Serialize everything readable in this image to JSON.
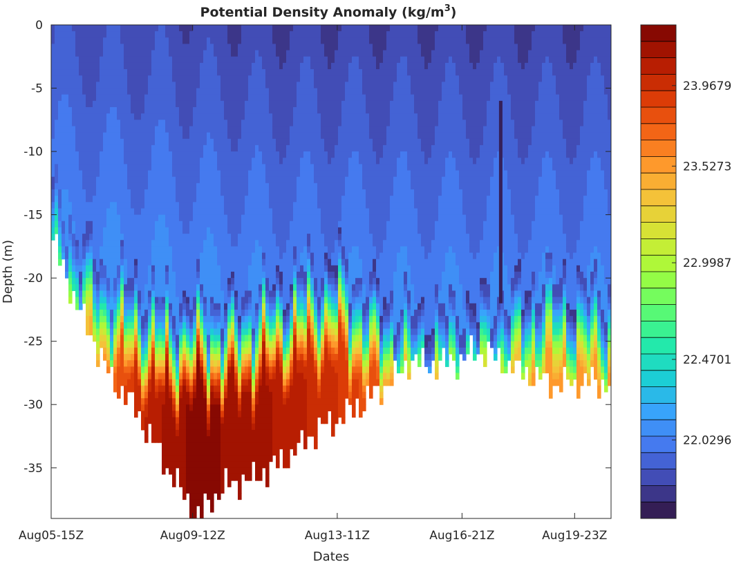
{
  "chart_data": {
    "type": "heatmap",
    "title": "Potential Density Anomaly (kg/m",
    "title_superscript": "3",
    "title_suffix": ")",
    "xlabel": "Dates",
    "ylabel": "Depth  (m)",
    "xlim": [
      0,
      15.33
    ],
    "ylim": [
      -39,
      0
    ],
    "x_tick_labels": [
      "Aug05-15Z",
      "Aug09-12Z",
      "Aug13-11Z",
      "Aug16-21Z",
      "Aug19-23Z"
    ],
    "x_tick_values": [
      0,
      3.875,
      7.833,
      11.25,
      14.333
    ],
    "y_ticks": [
      0,
      -5,
      -10,
      -15,
      -20,
      -25,
      -30,
      -35
    ],
    "colorbar": {
      "tick_labels": [
        "23.9679",
        "23.5273",
        "22.9987",
        "22.4701",
        "22.0296"
      ],
      "tick_values": [
        23.9679,
        23.5273,
        22.9987,
        22.4701,
        22.0296
      ],
      "range": [
        21.6,
        24.3
      ],
      "levels": 30
    },
    "colormap": [
      "#30123b",
      "#4145ab",
      "#4675ed",
      "#39a2fc",
      "#1bcfd4",
      "#24eca6",
      "#61fc6c",
      "#a4fc3b",
      "#d1e834",
      "#f3c63a",
      "#fe9b2d",
      "#f36315",
      "#d93806",
      "#b11901",
      "#7a0402"
    ],
    "surface_density": 21.85,
    "profile_points": [
      {
        "x": 0.0,
        "mld": -13,
        "bottom": -16.5,
        "deep": 22.9
      },
      {
        "x": 0.8,
        "mld": -17,
        "bottom": -22.5,
        "deep": 23.3
      },
      {
        "x": 1.6,
        "mld": -19.5,
        "bottom": -27.5,
        "deep": 23.7
      },
      {
        "x": 2.4,
        "mld": -20.5,
        "bottom": -30.5,
        "deep": 24.0
      },
      {
        "x": 3.2,
        "mld": -22,
        "bottom": -35,
        "deep": 24.15
      },
      {
        "x": 4.0,
        "mld": -21.5,
        "bottom": -38.5,
        "deep": 24.25
      },
      {
        "x": 4.8,
        "mld": -22,
        "bottom": -36,
        "deep": 24.2
      },
      {
        "x": 5.6,
        "mld": -21,
        "bottom": -35.5,
        "deep": 24.15
      },
      {
        "x": 6.4,
        "mld": -20,
        "bottom": -34,
        "deep": 24.1
      },
      {
        "x": 7.2,
        "mld": -19,
        "bottom": -32,
        "deep": 24.0
      },
      {
        "x": 7.8,
        "mld": -18.5,
        "bottom": -31,
        "deep": 23.95
      },
      {
        "x": 8.8,
        "mld": -21,
        "bottom": -29,
        "deep": 23.8
      },
      {
        "x": 9.8,
        "mld": -22.5,
        "bottom": -26.5,
        "deep": 23.55
      },
      {
        "x": 10.8,
        "mld": -22.5,
        "bottom": -26.5,
        "deep": 23.4
      },
      {
        "x": 11.8,
        "mld": -22,
        "bottom": -25.5,
        "deep": 23.35
      },
      {
        "x": 12.8,
        "mld": -21,
        "bottom": -27,
        "deep": 23.45
      },
      {
        "x": 13.6,
        "mld": -20,
        "bottom": -28,
        "deep": 23.55
      },
      {
        "x": 14.4,
        "mld": -20.5,
        "bottom": -28,
        "deep": 23.55
      },
      {
        "x": 15.33,
        "mld": -21,
        "bottom": -28,
        "deep": 23.6
      }
    ]
  }
}
